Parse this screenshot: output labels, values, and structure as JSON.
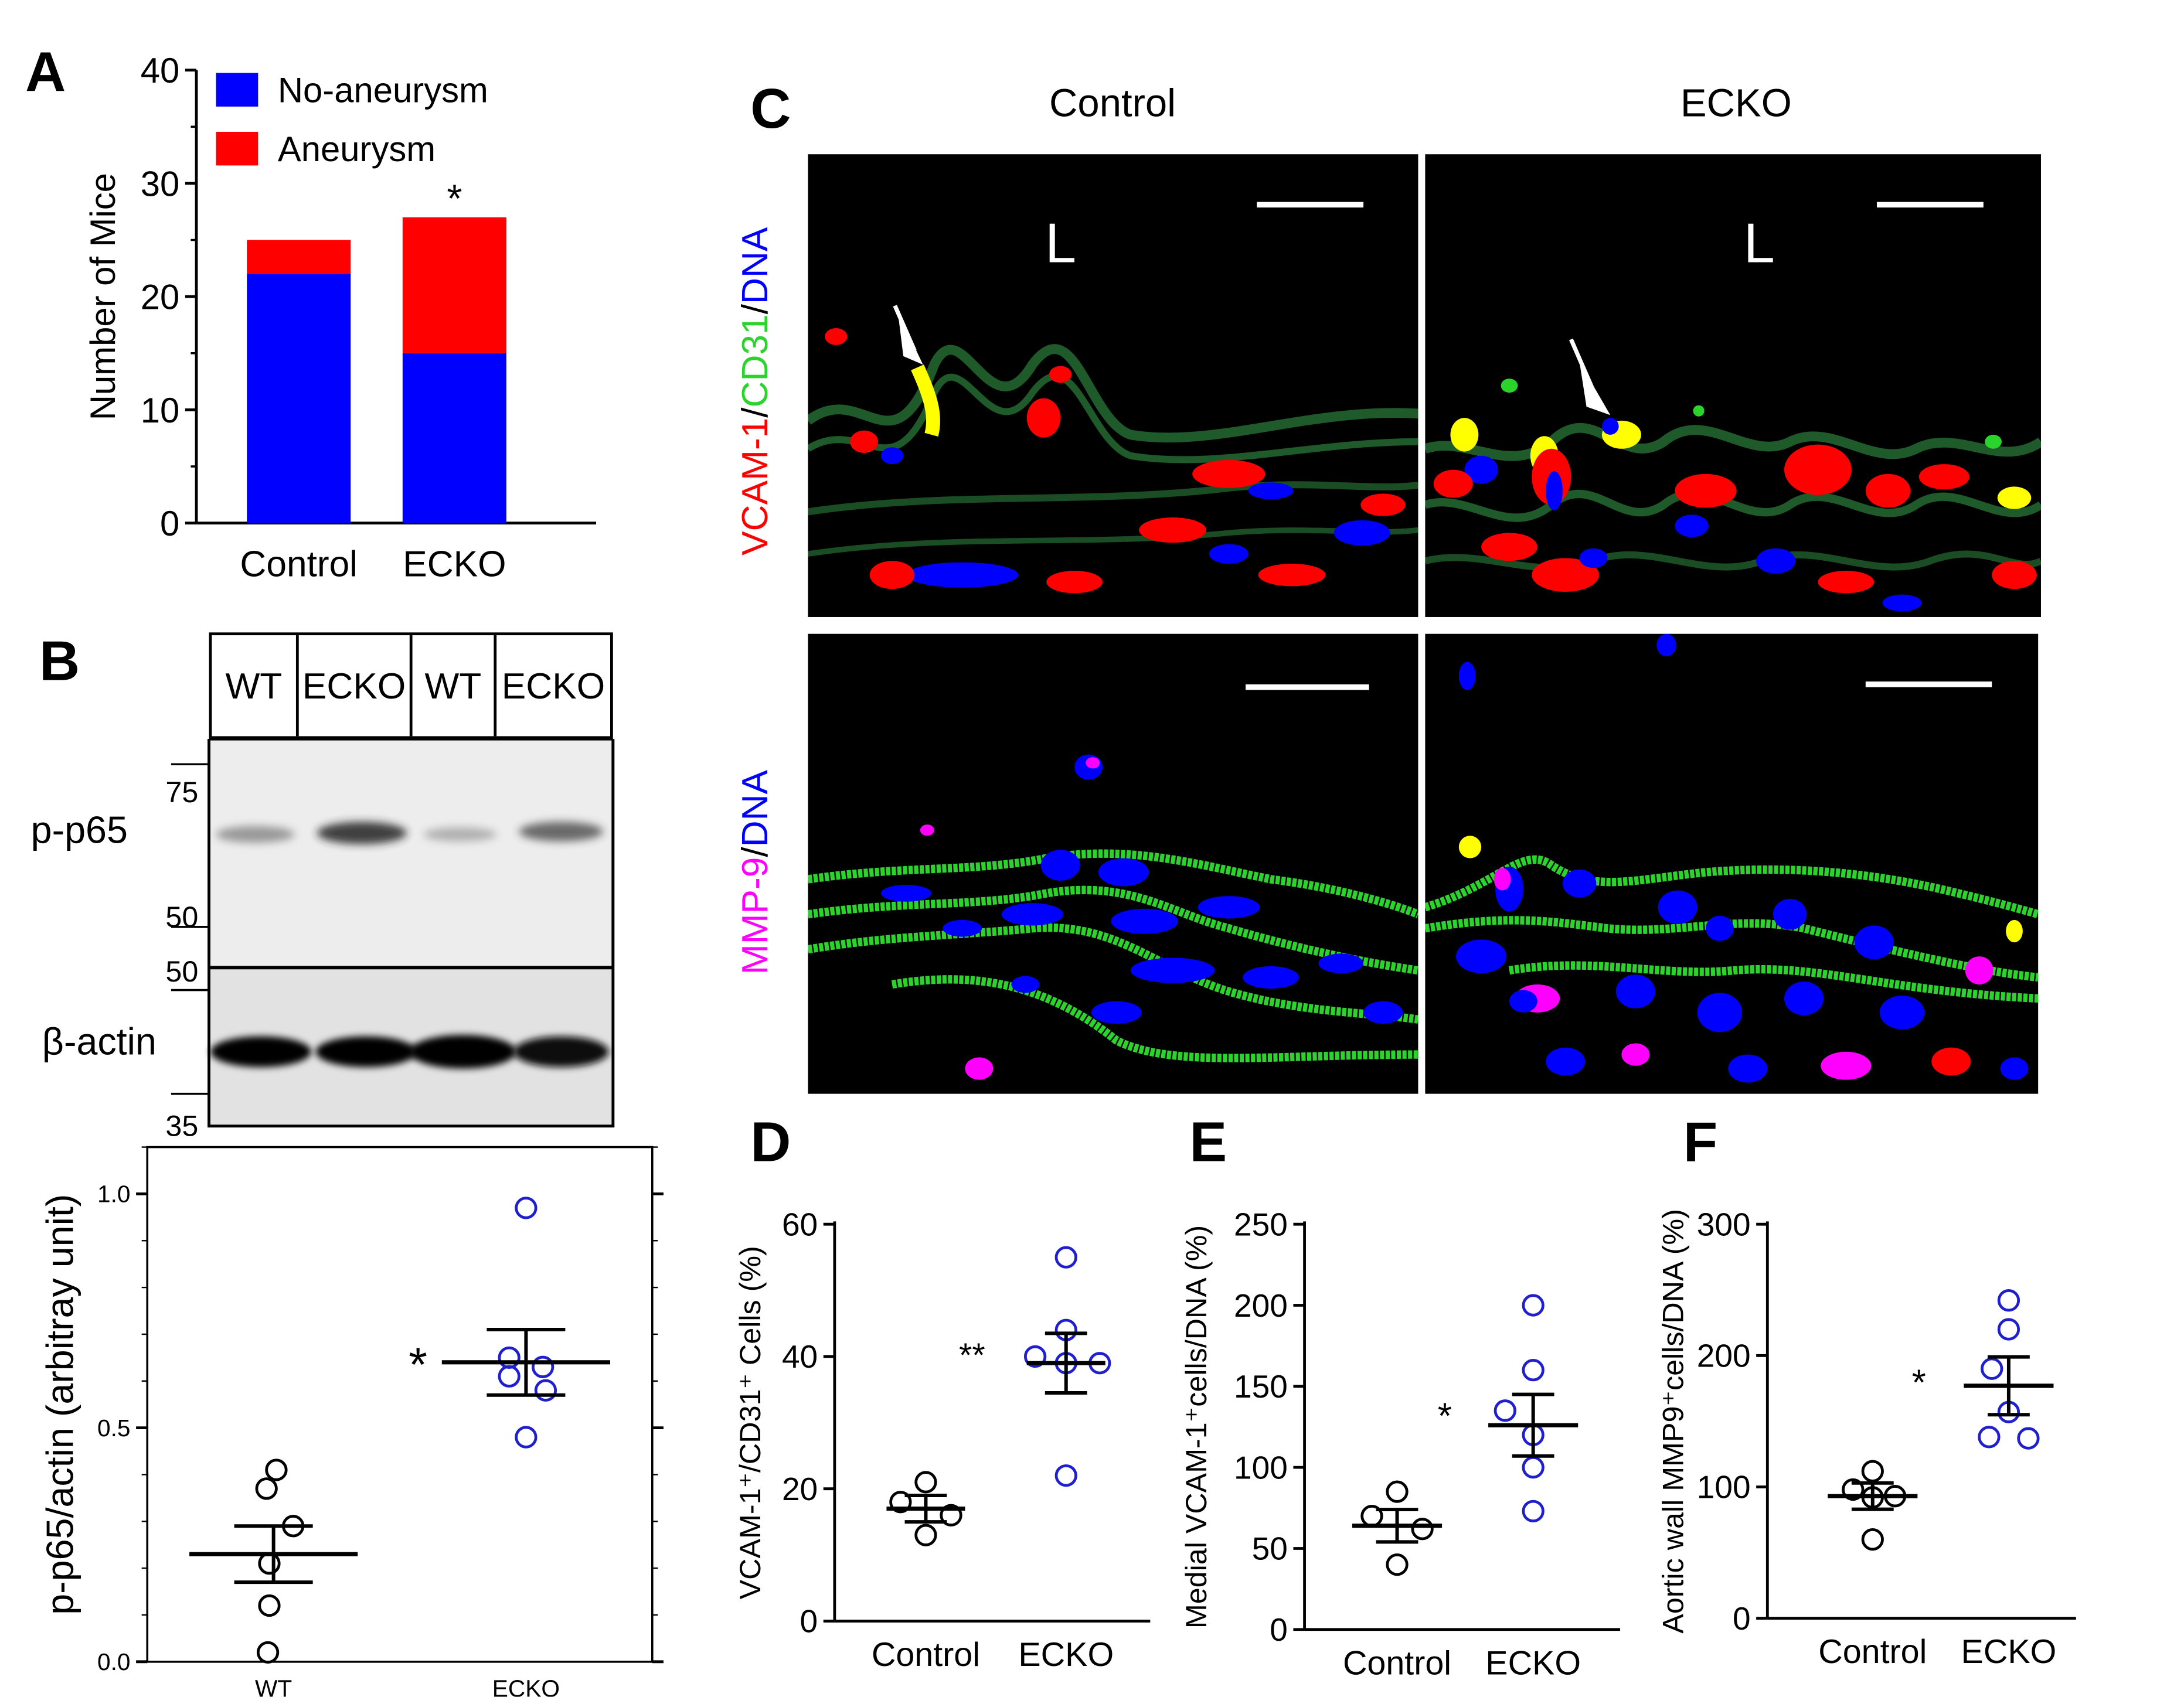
{
  "panels": {
    "A": {
      "label": "A",
      "legend": [
        {
          "name": "No-aneurysm",
          "color": "#0000ff"
        },
        {
          "name": "Aneurysm",
          "color": "#ff0000"
        }
      ],
      "significance": "*"
    },
    "B": {
      "label": "B",
      "lanes": [
        "WT",
        "ECKO",
        "WT",
        "ECKO"
      ],
      "rows": [
        "p-p65",
        "β-actin"
      ],
      "markers": [
        "75",
        "50",
        "50",
        "35"
      ]
    },
    "C": {
      "label": "C",
      "columns": [
        "Control",
        "ECKO"
      ],
      "lumen_label": "L",
      "stain_top": {
        "part1": "VCAM-1",
        "sep1": "/",
        "part2": "CD31",
        "sep2": "/",
        "part3": "DNA"
      },
      "stain_bottom": {
        "part1": "MMP-9",
        "sep1": "/",
        "part2": "DNA"
      }
    },
    "D": {
      "label": "D"
    },
    "E": {
      "label": "E"
    },
    "F": {
      "label": "F"
    }
  },
  "colors": {
    "blue": "#0000ff",
    "red": "#ff0000",
    "green": "#2bd42b",
    "magenta": "#ff00ff",
    "yellow": "#ffff00",
    "open_circle_blue": "#1f1fd0"
  },
  "chart_data": [
    {
      "id": "A",
      "type": "bar",
      "stacked": true,
      "categories": [
        "Control",
        "ECKO"
      ],
      "series": [
        {
          "name": "No-aneurysm",
          "values": [
            22,
            15
          ]
        },
        {
          "name": "Aneurysm",
          "values": [
            3,
            12
          ]
        }
      ],
      "ylabel": "Number of Mice",
      "ylim": [
        0,
        40
      ],
      "yticks": [
        0,
        10,
        20,
        30,
        40
      ],
      "annotation": "*"
    },
    {
      "id": "B",
      "type": "scatter",
      "categories": [
        "WT",
        "ECKO"
      ],
      "ylabel": "p-p65/actin (arbitray unit)",
      "ylim": [
        0,
        1.1
      ],
      "yticks": [
        "0.0",
        "0.5",
        "1.0"
      ],
      "points": [
        [
          0.41,
          0.37,
          0.29,
          0.21,
          0.12,
          0.02
        ],
        [
          0.97,
          0.65,
          0.63,
          0.61,
          0.58,
          0.48
        ]
      ],
      "mean": [
        0.23,
        0.64
      ],
      "sem": [
        0.06,
        0.07
      ],
      "annotation": "*"
    },
    {
      "id": "D",
      "type": "scatter",
      "categories": [
        "Control",
        "ECKO"
      ],
      "ylabel": "VCAM-1⁺/CD31⁺ Cells (%)",
      "ylim": [
        0,
        60
      ],
      "yticks": [
        0,
        20,
        40,
        60
      ],
      "points": [
        [
          21,
          18,
          16,
          13
        ],
        [
          55,
          44,
          40,
          39,
          39,
          22
        ]
      ],
      "mean": [
        17,
        39
      ],
      "sem": [
        2,
        4.5
      ],
      "annotation": "**"
    },
    {
      "id": "E",
      "type": "scatter",
      "categories": [
        "Control",
        "ECKO"
      ],
      "ylabel": "Medial VCAM-1⁺cells/DNA (%)",
      "ylim": [
        0,
        250
      ],
      "yticks": [
        0,
        50,
        100,
        150,
        200,
        250
      ],
      "points": [
        [
          85,
          70,
          62,
          40
        ],
        [
          200,
          160,
          135,
          120,
          100,
          73
        ]
      ],
      "mean": [
        64,
        126
      ],
      "sem": [
        10,
        19
      ],
      "annotation": "*"
    },
    {
      "id": "F",
      "type": "scatter",
      "categories": [
        "Control",
        "ECKO"
      ],
      "ylabel": "Aortic wall MMP9⁺cells/DNA (%)",
      "ylim": [
        0,
        300
      ],
      "yticks": [
        0,
        100,
        200,
        300
      ],
      "points": [
        [
          112,
          98,
          93,
          92,
          60
        ],
        [
          242,
          220,
          190,
          157,
          138,
          137
        ]
      ],
      "mean": [
        93,
        177
      ],
      "sem": [
        10,
        22
      ],
      "annotation": "*"
    }
  ]
}
